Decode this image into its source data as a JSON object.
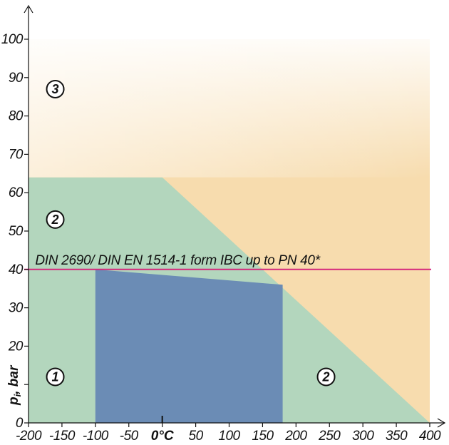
{
  "chart_data": {
    "type": "area",
    "title": "",
    "xlabel": "0°C",
    "ylabel": "p, bar",
    "ylabel_subscript": "i",
    "xlim": [
      -200,
      400
    ],
    "ylim": [
      0,
      100
    ],
    "x_ticks": [
      -200,
      -150,
      -100,
      -50,
      0,
      50,
      100,
      150,
      200,
      250,
      300,
      350,
      400
    ],
    "x_tick_labels": [
      "-200",
      "-150",
      "-100",
      "-50",
      "",
      "50",
      "100",
      "150",
      "200",
      "250",
      "300",
      "350",
      "400"
    ],
    "y_ticks": [
      0,
      10,
      20,
      30,
      40,
      50,
      60,
      70,
      80,
      90,
      100
    ],
    "y_tick_labels": [
      "0",
      "",
      "20",
      "30",
      "40",
      "50",
      "60",
      "70",
      "80",
      "90",
      "100"
    ],
    "grid": false,
    "regions": [
      {
        "label": "3",
        "color": "#f7dcae",
        "polygon": [
          [
            -200,
            0
          ],
          [
            400,
            0
          ],
          [
            400,
            100
          ],
          [
            -200,
            100
          ]
        ],
        "label_at": [
          -160,
          87
        ]
      },
      {
        "label": "2",
        "color": "#b3d6bd",
        "polygon": [
          [
            -200,
            0
          ],
          [
            400,
            0
          ],
          [
            0,
            64
          ],
          [
            -200,
            64
          ]
        ],
        "label_at": [
          -160,
          53
        ]
      },
      {
        "label": "1",
        "color": "#6b8cb5",
        "polygon": [
          [
            -100,
            0
          ],
          [
            180,
            0
          ],
          [
            180,
            36
          ],
          [
            -100,
            40
          ]
        ],
        "label_at": [
          -160,
          12
        ]
      },
      {
        "label": "2",
        "color": "#b3d6bd",
        "polygon": [],
        "label_at": [
          245,
          12
        ]
      }
    ],
    "reference_lines": [
      {
        "y": 40,
        "color": "#d6277b",
        "label": "DIN 2690/ DIN EN 1514-1 form IBC up to PN 40*"
      }
    ]
  }
}
